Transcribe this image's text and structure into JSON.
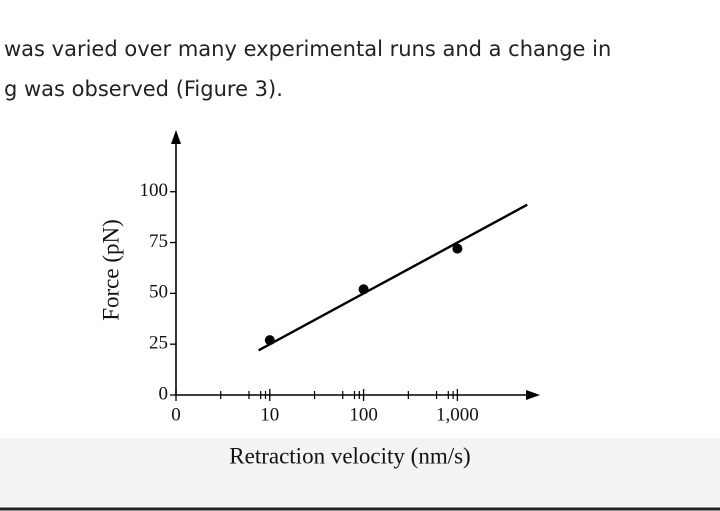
{
  "document": {
    "lines": [
      "was varied over many experimental runs and a change in",
      "g was observed (Figure 3)."
    ]
  },
  "chart_data": {
    "type": "scatter",
    "x_label": "Retraction velocity (nm/s)",
    "y_label": "Force (pN)",
    "x": [
      10,
      100,
      1000
    ],
    "values": [
      27,
      52,
      72
    ],
    "color": "#000000",
    "fit_line": {
      "x": [
        7.6,
        5560
      ],
      "values": [
        22,
        93.6
      ]
    },
    "log_x": true,
    "xlim": [
      1,
      7600
    ],
    "ylim": [
      0,
      122
    ],
    "xticks": [
      {
        "value": 0,
        "label": "0"
      },
      10,
      100,
      {
        "value": 1000,
        "label": "1,000"
      }
    ],
    "xticks_minor": [
      3,
      6,
      8,
      9,
      30,
      60,
      80,
      90,
      300,
      600,
      800,
      900
    ],
    "yticks": [
      0,
      25,
      50,
      75,
      100
    ]
  }
}
